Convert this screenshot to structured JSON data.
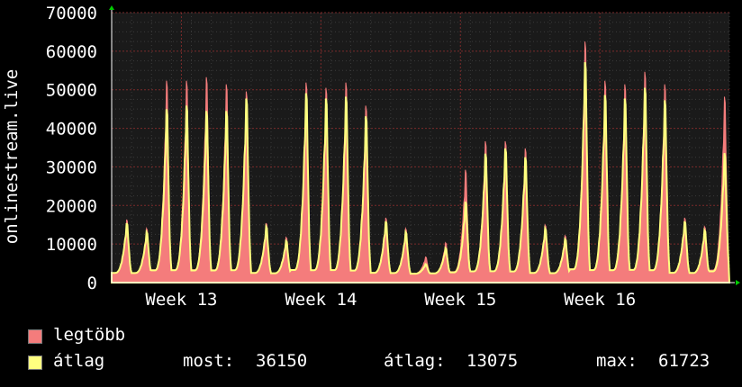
{
  "chart_data": {
    "type": "area",
    "ylabel": "onlinestream.live",
    "ylim": [
      0,
      70000
    ],
    "yticks": [
      0,
      10000,
      20000,
      30000,
      40000,
      50000,
      60000,
      70000
    ],
    "ytick_labels": [
      "0",
      "10000",
      "20000",
      "30000",
      "40000",
      "50000",
      "60000",
      "70000"
    ],
    "xlim": [
      0,
      31
    ],
    "xticks": [
      {
        "x": 3.5,
        "label": "Week 13"
      },
      {
        "x": 10.5,
        "label": "Week 14"
      },
      {
        "x": 17.5,
        "label": "Week 15"
      },
      {
        "x": 24.5,
        "label": "Week 16"
      }
    ],
    "grid": true,
    "background": "#1a1a1a",
    "series": [
      {
        "name": "legtöbb",
        "color": "#f47c7c",
        "daily_peaks": [
          17500,
          15000,
          56500,
          56500,
          57500,
          55500,
          53500,
          16500,
          12500,
          56000,
          54500,
          56000,
          49500,
          18000,
          15000,
          7000,
          11000,
          31500,
          39500,
          39500,
          37500,
          16000,
          13000,
          67500,
          56500,
          55500,
          59000,
          55500,
          18000,
          15500,
          52000
        ]
      },
      {
        "name": "átlag",
        "color": "#ffff80",
        "daily_peaks": [
          16500,
          14000,
          48500,
          49500,
          48000,
          48000,
          51500,
          15500,
          11500,
          53000,
          51500,
          52000,
          46500,
          17000,
          14000,
          5000,
          9500,
          22500,
          36000,
          37500,
          35000,
          15000,
          12000,
          61723,
          52500,
          51500,
          54500,
          51000,
          17000,
          14500,
          36150
        ]
      }
    ],
    "legend": {
      "max_label": "legtöbb",
      "avg_label": "átlag",
      "stats": [
        {
          "label": "most:",
          "value": "36150"
        },
        {
          "label": "átlag:",
          "value": "13075"
        },
        {
          "label": "max:",
          "value": "61723"
        }
      ]
    }
  }
}
